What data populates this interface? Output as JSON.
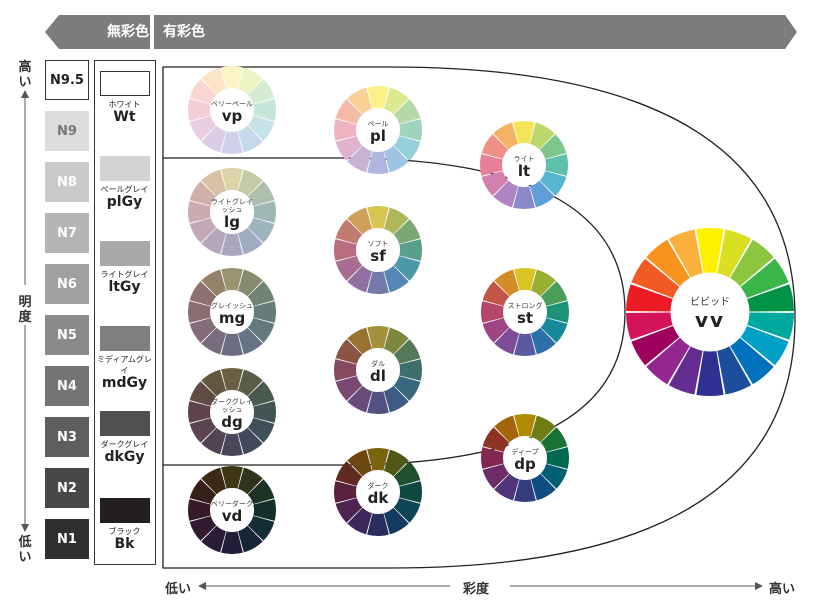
{
  "banner": {
    "achromatic": "無彩色",
    "chromatic": "有彩色"
  },
  "lightness_axis": {
    "high": "高い",
    "label": "明度",
    "low": "低い"
  },
  "saturation_axis": {
    "low": "低い",
    "label": "彩度",
    "high": "高い"
  },
  "neutrals": [
    {
      "code": "N9.5",
      "color": "#ffffff"
    },
    {
      "code": "N9",
      "color": "#dcdcdc"
    },
    {
      "code": "N8",
      "color": "#cacaca"
    },
    {
      "code": "N7",
      "color": "#b5b5b6"
    },
    {
      "code": "N6",
      "color": "#9fa0a0"
    },
    {
      "code": "N5",
      "color": "#8a8a8b"
    },
    {
      "code": "N4",
      "color": "#747476"
    },
    {
      "code": "N3",
      "color": "#5e5e60"
    },
    {
      "code": "N2",
      "color": "#48484a"
    },
    {
      "code": "N1",
      "color": "#2f2f31"
    }
  ],
  "achromatic_tones": [
    {
      "jp": "ホワイト",
      "code": "Wt",
      "color": "#ffffff"
    },
    {
      "jp": "ペールグレイ",
      "code": "plGy",
      "color": "#d3d3d4"
    },
    {
      "jp": "ライトグレイ",
      "code": "ltGy",
      "color": "#a9a9aa"
    },
    {
      "jp": "ミディアムグレイ",
      "code": "mdGy",
      "color": "#7f7f81"
    },
    {
      "jp": "ダークグレイ",
      "code": "dkGy",
      "color": "#505052"
    },
    {
      "jp": "ブラック",
      "code": "Bk",
      "color": "#231f20"
    }
  ],
  "tones": [
    {
      "code": "vp",
      "jp": "ベリーペール",
      "colors": [
        "#fdf3c6",
        "#eef3c4",
        "#d5ecd2",
        "#c6e6dc",
        "#c6e1e8",
        "#c7d8ec",
        "#cfd1ea",
        "#dbcde6",
        "#e9cde0",
        "#f4cfd8",
        "#f9d6cf",
        "#fde3c8"
      ]
    },
    {
      "code": "pl",
      "jp": "ペール",
      "colors": [
        "#fcf08a",
        "#dde991",
        "#b4d9a6",
        "#9fd3bd",
        "#93d0d9",
        "#9fc3e3",
        "#b0b7de",
        "#c8b2d8",
        "#dfb3cf",
        "#eeb5c1",
        "#f4bba9",
        "#f9d095"
      ]
    },
    {
      "code": "lt",
      "jp": "ライト",
      "colors": [
        "#f3e55a",
        "#bcd76c",
        "#7fc58e",
        "#5fbfaa",
        "#55b6cf",
        "#5f9ed8",
        "#8a8acb",
        "#af84c2",
        "#d280ae",
        "#e6809a",
        "#ee9184",
        "#f5b264"
      ]
    },
    {
      "code": "lg",
      "jp": "ライトグレイッシュ",
      "colors": [
        "#dcd3a8",
        "#c5cba8",
        "#aebfae",
        "#a0b8b4",
        "#9db3bd",
        "#a0abc1",
        "#aaa6bf",
        "#b6a6bb",
        "#c3a8b6",
        "#cbaab0",
        "#d0b0a8",
        "#d8c0a4"
      ]
    },
    {
      "code": "sf",
      "jp": "ソフト",
      "colors": [
        "#d8c552",
        "#afb75a",
        "#7aa774",
        "#5a9e8c",
        "#4c97a8",
        "#5687b4",
        "#7479a9",
        "#8f70a0",
        "#a86d92",
        "#b96e80",
        "#c07a70",
        "#cfa05c"
      ]
    },
    {
      "code": "st",
      "jp": "ストロング",
      "colors": [
        "#d9c425",
        "#98b031",
        "#4b9e57",
        "#1e9278",
        "#16899b",
        "#2d6fa8",
        "#5a5aa0",
        "#7e4b96",
        "#a04584",
        "#b5466c",
        "#c25548",
        "#d48c28"
      ]
    },
    {
      "code": "mg",
      "jp": "グレイッシュ",
      "colors": [
        "#9b9470",
        "#878b6f",
        "#708474",
        "#657d79",
        "#627980",
        "#647385",
        "#6e6e82",
        "#786c7e",
        "#826c78",
        "#886d72",
        "#8c726c",
        "#948268"
      ]
    },
    {
      "code": "dl",
      "jp": "ダル",
      "colors": [
        "#a3923b",
        "#7f8640",
        "#56785a",
        "#3f6f6c",
        "#37687e",
        "#3d5b85",
        "#545082",
        "#664b7b",
        "#7a4870",
        "#86495f",
        "#8a5346",
        "#987330"
      ]
    },
    {
      "code": "dp",
      "jp": "ディープ",
      "colors": [
        "#b08a05",
        "#6f7e13",
        "#187233",
        "#00694f",
        "#005f73",
        "#0d4d7f",
        "#353d7e",
        "#503579",
        "#6e2c67",
        "#82274f",
        "#8e3424",
        "#a2650a"
      ]
    },
    {
      "code": "dg",
      "jp": "ダークグレイッシュ",
      "colors": [
        "#6a6044",
        "#5a5d46",
        "#4a5a4e",
        "#425554",
        "#3f5058",
        "#414a5c",
        "#4a465a",
        "#534455",
        "#5a4450",
        "#5e444a",
        "#5f4a44",
        "#655640"
      ]
    },
    {
      "code": "dk",
      "jp": "ダーク",
      "colors": [
        "#7a6410",
        "#515817",
        "#1f4f2c",
        "#0e4a42",
        "#0e4556",
        "#153a5f",
        "#2a2e5e",
        "#3c285a",
        "#4e2550",
        "#59223d",
        "#5f2a22",
        "#6c4810"
      ]
    },
    {
      "code": "vd",
      "jp": "ベリーダーク",
      "colors": [
        "#3f3616",
        "#30341b",
        "#1d3323",
        "#14302d",
        "#142d36",
        "#172639",
        "#211f38",
        "#2a1c36",
        "#321b31",
        "#371a27",
        "#38201a",
        "#3b2a14"
      ]
    },
    {
      "code": "vv",
      "jp": "ビビッド",
      "colors": [
        "#fff100",
        "#d9e021",
        "#8cc63f",
        "#39b54a",
        "#009245",
        "#00a99d",
        "#00a0c6",
        "#0071bc",
        "#1b4f9c",
        "#2e3192",
        "#662d91",
        "#93278f",
        "#9e005d",
        "#d4145a",
        "#ed1c24",
        "#f15a24",
        "#f7931e",
        "#fbb03b"
      ]
    }
  ]
}
